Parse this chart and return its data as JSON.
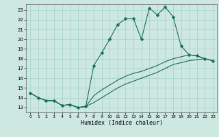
{
  "title": "",
  "xlabel": "Humidex (Indice chaleur)",
  "bg_color": "#cce8e0",
  "grid_color": "#a8d4cc",
  "line_color": "#1a6b5a",
  "xlim": [
    -0.5,
    23.5
  ],
  "ylim": [
    12.5,
    23.6
  ],
  "yticks": [
    13,
    14,
    15,
    16,
    17,
    18,
    19,
    20,
    21,
    22,
    23
  ],
  "xticks": [
    0,
    1,
    2,
    3,
    4,
    5,
    6,
    7,
    8,
    9,
    10,
    11,
    12,
    13,
    14,
    15,
    16,
    17,
    18,
    19,
    20,
    21,
    22,
    23
  ],
  "series1_x": [
    0,
    1,
    2,
    3,
    4,
    5,
    6,
    7,
    8,
    9,
    10,
    11,
    12,
    13,
    14,
    15,
    16,
    17,
    18,
    19,
    20,
    21,
    22,
    23
  ],
  "series1_y": [
    14.5,
    14.0,
    13.7,
    13.7,
    13.2,
    13.3,
    13.0,
    13.1,
    17.3,
    18.6,
    20.0,
    21.5,
    22.1,
    22.1,
    20.0,
    23.2,
    22.5,
    23.3,
    22.3,
    19.3,
    18.4,
    18.3,
    18.0,
    17.8
  ],
  "series2_x": [
    0,
    1,
    2,
    3,
    4,
    5,
    6,
    7,
    8,
    9,
    10,
    11,
    12,
    13,
    14,
    15,
    16,
    17,
    18,
    19,
    20,
    21,
    22,
    23
  ],
  "series2_y": [
    14.5,
    14.0,
    13.7,
    13.7,
    13.2,
    13.3,
    13.0,
    13.1,
    14.2,
    14.8,
    15.3,
    15.8,
    16.2,
    16.5,
    16.7,
    17.0,
    17.3,
    17.7,
    18.0,
    18.2,
    18.4,
    18.3,
    18.0,
    17.8
  ],
  "series3_x": [
    0,
    1,
    2,
    3,
    4,
    5,
    6,
    7,
    8,
    9,
    10,
    11,
    12,
    13,
    14,
    15,
    16,
    17,
    18,
    19,
    20,
    21,
    22,
    23
  ],
  "series3_y": [
    14.5,
    14.0,
    13.7,
    13.7,
    13.2,
    13.3,
    13.0,
    13.1,
    13.5,
    14.0,
    14.5,
    15.0,
    15.4,
    15.7,
    16.0,
    16.3,
    16.6,
    17.0,
    17.4,
    17.6,
    17.8,
    17.9,
    18.0,
    17.8
  ],
  "markersize": 2.5
}
